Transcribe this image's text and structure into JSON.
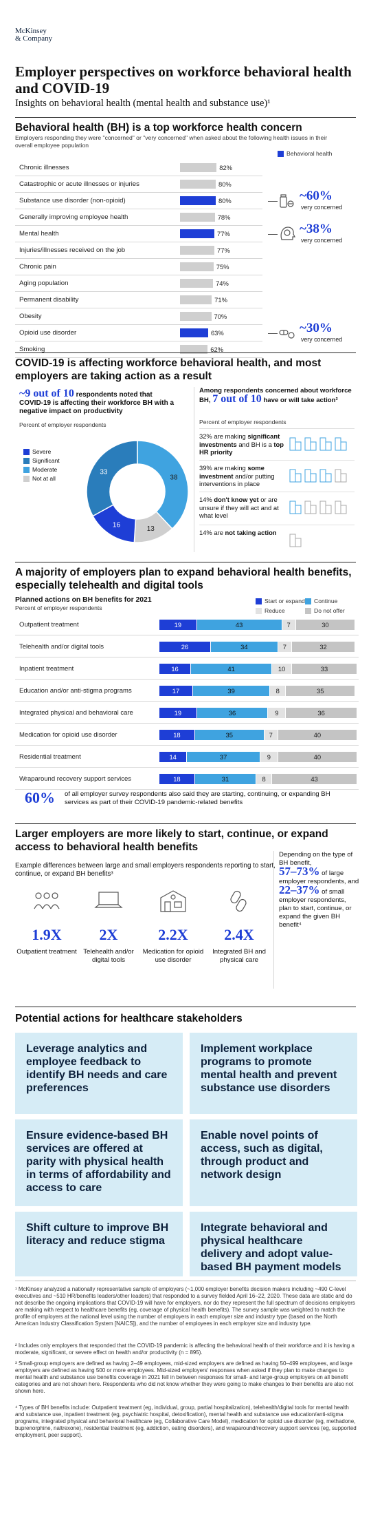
{
  "logo": {
    "line1": "McKinsey",
    "line2": "& Company"
  },
  "title": "Employer perspectives on workforce behavioral health and COVID-19",
  "subtitle": "Insights on behavioral health (mental health and substance use)¹",
  "section1": {
    "heading": "Behavioral health (BH) is a top workforce health concern",
    "desc": "Employers responding they were \"concerned\" or \"very concerned\" when asked about the following health issues in their overall employee population",
    "legend": "Behavioral health",
    "callouts": [
      {
        "value": "~60%",
        "label": "very concerned",
        "icon": "pills-bottle-icon"
      },
      {
        "value": "~38%",
        "label": "very concerned",
        "icon": "brain-head-icon"
      },
      {
        "value": "~30%",
        "label": "very concerned",
        "icon": "pills-icon"
      }
    ]
  },
  "section2": {
    "heading": "COVID-19 is affecting workforce behavioral health, and most employers are taking action as a result",
    "left_big": "~9 out of 10",
    "left_text1": " respondents noted that",
    "left_text2": "COVID-19 is affecting their workforce BH with a negative impact on productivity",
    "left_sub": "Percent of employer respondents",
    "donut_legend": [
      "Severe",
      "Significant",
      "Moderate",
      "Not at all"
    ],
    "right_text1": "Among respondents concerned about workforce BH,",
    "right_big": "7 out of 10",
    "right_text2": "have or will take action²",
    "right_sub": "Percent of employer respondents",
    "actions": [
      {
        "pct": "32% are making ",
        "bold": "significant investments",
        "rest": " and BH is a ",
        "bold2": "top HR priority"
      },
      {
        "pct": "39% are making ",
        "bold": "some investment",
        "rest": " and/or putting interventions in place",
        "bold2": ""
      },
      {
        "pct": "14% ",
        "bold": "don't know yet",
        "rest": " or are unsure if they will act and at what level",
        "bold2": ""
      },
      {
        "pct": "14% are ",
        "bold": "not taking action",
        "rest": "",
        "bold2": ""
      }
    ]
  },
  "section3": {
    "heading": "A majority of employers plan to expand behavioral health benefits, especially telehealth and digital tools",
    "chart_title": "Planned actions on BH benefits for 2021",
    "chart_sub": "Percent of employer respondents",
    "legend": [
      "Start or expand",
      "Continue",
      "Reduce",
      "Do not offer"
    ],
    "stat_big": "60%",
    "stat_text": "of all employer survey respondents also said they are starting, continuing, or expanding BH services as part of their COVID-19 pandemic-related benefits"
  },
  "section4": {
    "heading": "Larger employers are more likely to start, continue, or expand access to behavioral health benefits",
    "desc": "Example differences between large and small employers respondents reporting to start, continue, or expand BH benefits³",
    "items": [
      {
        "value": "1.9X",
        "label": "Outpatient treatment",
        "icon": "group-icon"
      },
      {
        "value": "2X",
        "label": "Telehealth and/or digital tools",
        "icon": "laptop-icon"
      },
      {
        "value": "2.2X",
        "label": "Medication for opioid use disorder",
        "icon": "pharmacy-icon"
      },
      {
        "value": "2.4X",
        "label": "Integrated BH and physical care",
        "icon": "link-icon"
      }
    ],
    "side_text1": "Depending on the type of BH benefit,",
    "side_big1": "57–73%",
    "side_text2": "of large employer respondents, and",
    "side_big2": "22–37%",
    "side_text3": "of small employer respondents, plan to start, continue, or expand the given BH benefit⁴"
  },
  "section5": {
    "heading": "Potential actions for healthcare stakeholders",
    "cards": [
      "Leverage analytics and employee feedback to identify BH needs and care preferences",
      "Implement workplace programs to promote mental health and prevent substance use disorders",
      "Ensure evidence-based BH services are offered at parity with physical health in terms of affordability and access to care",
      "Enable novel points of access, such as digital, through product and network design",
      "Shift culture to improve BH literacy and reduce stigma",
      "Integrate behavioral and physical healthcare delivery and adopt value-based BH payment models"
    ]
  },
  "footnotes": [
    "¹ McKinsey analyzed a nationally representative sample of employers (~1,000 employer benefits decision makers including ~490 C-level executives and ~510 HR/benefits leaders/other leaders) that responded to a survey fielded April 16–22, 2020. These data are static and do not describe the ongoing implications that COVID-19 will have for employers, nor do they represent the full spectrum of decisions employers are making with respect to healthcare benefits (eg, coverage of physical health benefits). The survey sample was weighted to match the profile of employers at the national level using the number of employers in each employer size and industry type (based on the North American Industry Classification System [NAICS]), and the number of employees in each employer size and industry type.",
    "² Includes only employers that responded that the COVID-19 pandemic is affecting the behavioral health of their workforce and it is having a moderate, significant, or severe effect on health and/or productivity (n = 895).",
    "³ Small-group employers are defined as having 2–49 employees, mid-sized employers are defined as having 50–499 employees, and large employers are defined as having 500 or more employees. Mid-sized employers' responses when asked if they plan to make changes to mental health and substance use benefits coverage in 2021 fell in between responses for small- and large-group employers on all benefit categories and are not shown here. Respondents who did not know whether they were going to make changes to their benefits are also not shown here.",
    "⁴ Types of BH benefits include: Outpatient treatment (eg, individual, group, partial hospitalization), telehealth/digital tools for mental health and substance use, inpatient treatment (eg, psychiatric hospital, detoxification), mental health and substance use education/anti-stigma programs, integrated physical and behavioral healthcare (eg, Collaborative Care Model), medication for opioid use disorder (eg, methadone, buprenorphine, naltrexone), residential treatment (eg, addiction, eating disorders), and wraparound/recovery support services (eg, supported employment, peer support)."
  ],
  "colors": {
    "blue": "#1e3ed6",
    "lightblue": "#3fa3e0",
    "grey": "#cfcfcf",
    "card": "#d6ecf6"
  },
  "chart_data": [
    {
      "type": "bar",
      "title": "Behavioral health (BH) is a top workforce health concern",
      "categories": [
        "Chronic illnesses",
        "Catastrophic or acute illnesses or injuries",
        "Substance use disorder (non-opioid)",
        "Generally improving employee health",
        "Mental health",
        "Injuries/illnesses received on the job",
        "Chronic pain",
        "Aging population",
        "Permanent disability",
        "Obesity",
        "Opioid use disorder",
        "Smoking"
      ],
      "values": [
        82,
        80,
        80,
        78,
        77,
        77,
        75,
        74,
        71,
        70,
        63,
        62
      ],
      "value_labels": [
        "82%",
        "80%",
        "80%",
        "78%",
        "77%",
        "77%",
        "75%",
        "74%",
        "71%",
        "70%",
        "63%",
        "62%"
      ],
      "highlight": [
        false,
        false,
        true,
        false,
        true,
        false,
        false,
        false,
        false,
        false,
        true,
        false
      ],
      "xlim": [
        0,
        100
      ]
    },
    {
      "type": "pie",
      "categories": [
        "Severe",
        "Significant",
        "Moderate",
        "Not at all"
      ],
      "values": [
        16,
        33,
        38,
        13
      ],
      "colors": [
        "#1e3ed6",
        "#2a7dbb",
        "#3fa3e0",
        "#cfcfcf"
      ]
    },
    {
      "type": "bar",
      "title": "Planned actions on BH benefits for 2021",
      "categories": [
        "Outpatient treatment",
        "Telehealth and/or digital tools",
        "Inpatient treatment",
        "Education and/or anti-stigma programs",
        "Integrated physical and behavioral care",
        "Medication for opioid use disorder",
        "Residential treatment",
        "Wraparound recovery support services"
      ],
      "series": [
        {
          "name": "Start or expand",
          "values": [
            19,
            26,
            16,
            17,
            19,
            18,
            14,
            18
          ]
        },
        {
          "name": "Continue",
          "values": [
            43,
            34,
            41,
            39,
            36,
            35,
            37,
            31
          ]
        },
        {
          "name": "Reduce",
          "values": [
            7,
            7,
            10,
            8,
            9,
            7,
            9,
            8
          ]
        },
        {
          "name": "Do not offer",
          "values": [
            30,
            32,
            33,
            35,
            36,
            40,
            40,
            43
          ]
        }
      ]
    }
  ]
}
